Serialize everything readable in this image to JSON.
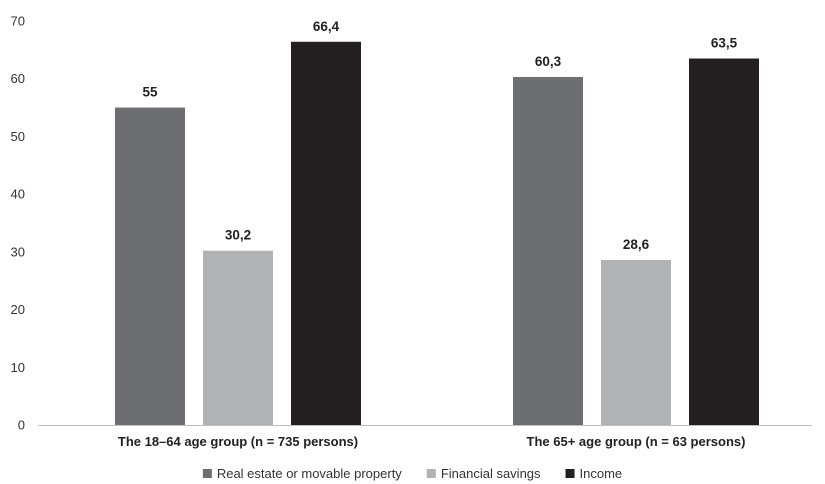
{
  "chart_data": {
    "type": "bar",
    "title": "",
    "xlabel": "",
    "ylabel": "",
    "ylim": [
      0,
      70
    ],
    "yticks": [
      0,
      10,
      20,
      30,
      40,
      50,
      60,
      70
    ],
    "grid": false,
    "legend_position": "bottom",
    "categories": [
      "The 18–64 age group (n = 735 persons)",
      "The 65+ age group (n = 63 persons)"
    ],
    "series": [
      {
        "name": "Real estate or movable property",
        "color": "#6d6e71",
        "values": [
          55,
          60.3
        ],
        "labels": [
          "55",
          "60,3"
        ]
      },
      {
        "name": "Financial savings",
        "color": "#b1b2b4",
        "values": [
          30.2,
          28.6
        ],
        "labels": [
          "30,2",
          "28,6"
        ]
      },
      {
        "name": "Income",
        "color": "#231f20",
        "values": [
          66.4,
          63.5
        ],
        "labels": [
          "66,4",
          "63,5"
        ]
      }
    ]
  }
}
